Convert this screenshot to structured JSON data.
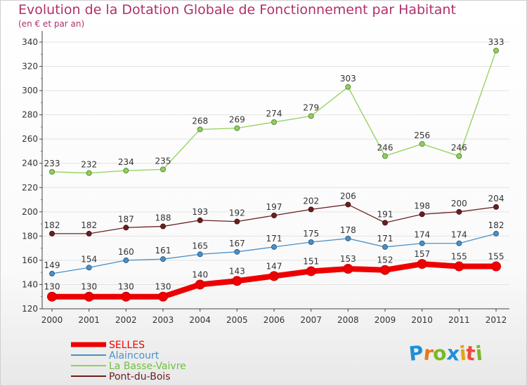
{
  "header": {
    "title": "Evolution de la Dotation Globale de Fonctionnement par Habitant",
    "subtitle": "(en € et par an)"
  },
  "logo": {
    "letters": [
      "P",
      "r",
      "o",
      "x",
      "i",
      "t",
      "i"
    ],
    "colors": [
      "#1f8fd6",
      "#e77817",
      "#79b928",
      "#1f8fd6",
      "#e7a416",
      "#ef4a3c",
      "#79b928"
    ]
  },
  "colors": {
    "title": "#b0306a",
    "axis": "#444444",
    "grid": "#e2e2e2"
  },
  "chart_data": {
    "type": "line",
    "title": "Evolution de la Dotation Globale de Fonctionnement par Habitant",
    "subtitle": "(en € et par an)",
    "xlabel": "",
    "ylabel": "",
    "ylim": [
      120,
      340
    ],
    "yticks": [
      120,
      140,
      160,
      180,
      200,
      220,
      240,
      260,
      280,
      300,
      320,
      340
    ],
    "grid": "horizontal",
    "legend_position": "bottom-left",
    "categories": [
      "2000",
      "2001",
      "2002",
      "2003",
      "2004",
      "2005",
      "2006",
      "2007",
      "2008",
      "2009",
      "2010",
      "2011",
      "2012"
    ],
    "series": [
      {
        "name": "SELLES",
        "color": "#ee0000",
        "emphasis": true,
        "values": [
          130,
          130,
          130,
          130,
          140,
          143,
          147,
          151,
          153,
          152,
          157,
          155,
          155
        ]
      },
      {
        "name": "Alaincourt",
        "color": "#4a90c8",
        "emphasis": false,
        "values": [
          149,
          154,
          160,
          161,
          165,
          167,
          171,
          175,
          178,
          171,
          174,
          174,
          182
        ]
      },
      {
        "name": "La Basse-Vaivre",
        "color": "#8fd15a",
        "emphasis": false,
        "values": [
          233,
          232,
          234,
          235,
          268,
          269,
          274,
          279,
          303,
          246,
          256,
          246,
          333
        ]
      },
      {
        "name": "Pont-du-Bois",
        "color": "#6b1f1f",
        "emphasis": false,
        "values": [
          182,
          182,
          187,
          188,
          193,
          192,
          197,
          202,
          206,
          191,
          198,
          200,
          204
        ]
      }
    ]
  }
}
